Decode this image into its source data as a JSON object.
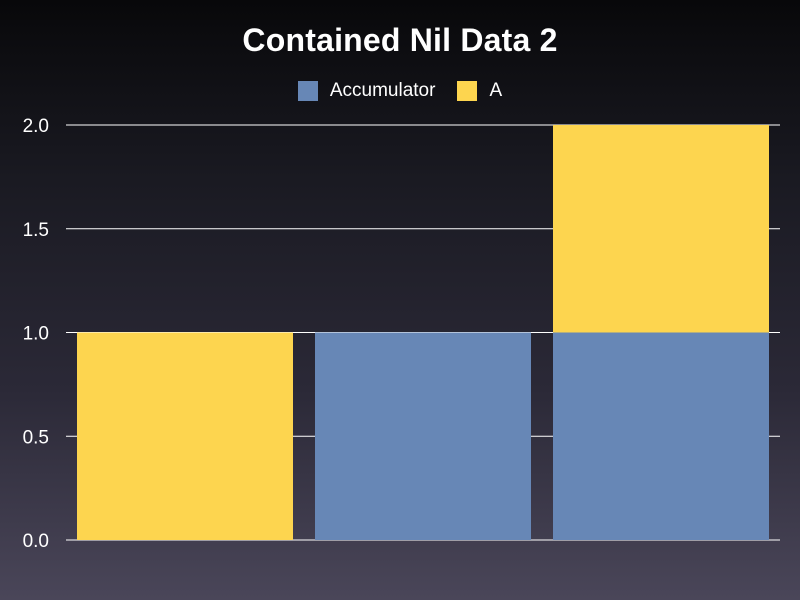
{
  "chart_data": {
    "type": "bar",
    "stacked": true,
    "title": "Contained Nil Data 2",
    "categories": [
      "",
      "",
      ""
    ],
    "series": [
      {
        "name": "Accumulator",
        "color": "#6787b6",
        "values": [
          0,
          1,
          1
        ]
      },
      {
        "name": "A",
        "color": "#fdd54f",
        "values": [
          1,
          0,
          1
        ]
      }
    ],
    "ylim": [
      0,
      2
    ],
    "yticks": [
      "0.0",
      "0.5",
      "1.0",
      "1.5",
      "2.0"
    ],
    "grid": true,
    "legend_position": "top-center"
  },
  "colors": {
    "grid": "#ffffff",
    "text": "#ffffff"
  }
}
